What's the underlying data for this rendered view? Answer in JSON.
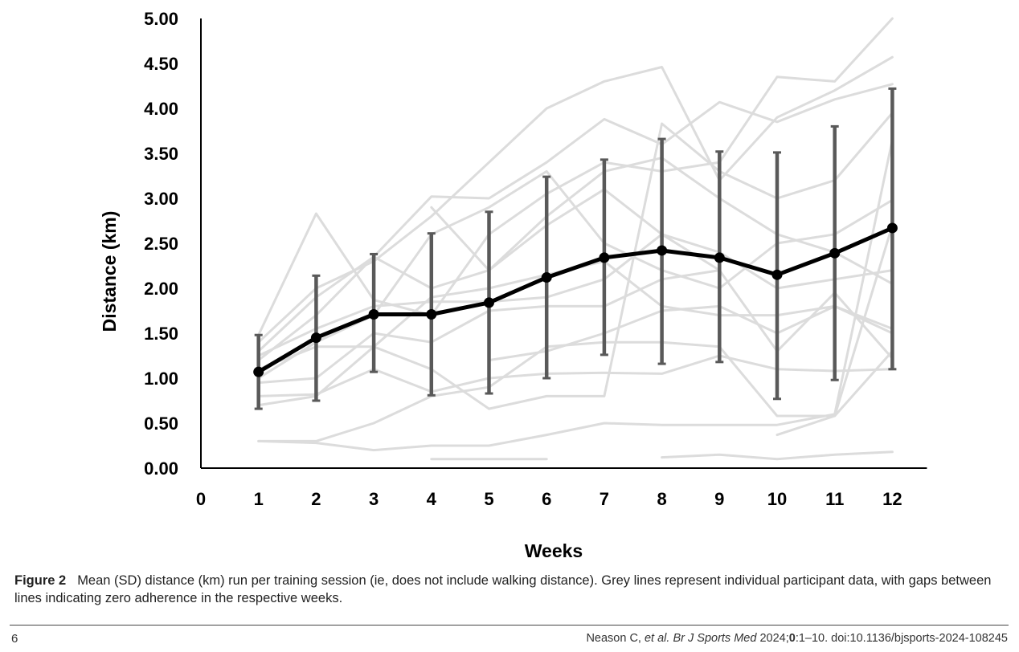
{
  "figure": {
    "label": "Figure 2",
    "caption": "Mean (SD) distance (km) run per training session (ie, does not include walking distance). Grey lines represent individual participant data, with gaps between lines indicating zero adherence in the respective weeks."
  },
  "footer": {
    "page_number": "6",
    "citation_authors": "Neason C, ",
    "citation_etal": "et al",
    "citation_journal": ". Br J Sports Med",
    "citation_year": " 2024;",
    "citation_vol": "0",
    "citation_rest": ":1–10. doi:10.1136/bjsports-2024-108245"
  },
  "chart_data": {
    "type": "line",
    "xlabel": "Weeks",
    "ylabel": "Distance (km)",
    "xlim": [
      0,
      12.5
    ],
    "ylim": [
      0,
      5
    ],
    "x_ticks": [
      "0",
      "1",
      "2",
      "3",
      "4",
      "5",
      "6",
      "7",
      "8",
      "9",
      "10",
      "11",
      "12"
    ],
    "y_ticks": [
      "0.00",
      "0.50",
      "1.00",
      "1.50",
      "2.00",
      "2.50",
      "3.00",
      "3.50",
      "4.00",
      "4.50",
      "5.00"
    ],
    "x": [
      1,
      2,
      3,
      4,
      5,
      6,
      7,
      8,
      9,
      10,
      11,
      12
    ],
    "mean": [
      1.07,
      1.45,
      1.71,
      1.71,
      1.84,
      2.12,
      2.34,
      2.42,
      2.34,
      2.15,
      2.39,
      2.67
    ],
    "sd_upper": [
      1.48,
      2.14,
      2.38,
      2.61,
      2.85,
      3.24,
      3.43,
      3.66,
      3.52,
      3.51,
      3.8,
      4.22
    ],
    "sd_lower": [
      0.66,
      0.75,
      1.07,
      0.81,
      0.83,
      1.0,
      1.26,
      1.16,
      1.18,
      0.77,
      0.98,
      1.1
    ],
    "colors": {
      "mean": "#000000",
      "error_bar": "#595959",
      "individual": "#dcdcdc"
    },
    "individual_series": [
      [
        1.48,
        2.83,
        1.87,
        1.7,
        2.6,
        3.05,
        3.4,
        3.3,
        3.4,
        4.35,
        4.3,
        5.0
      ],
      [
        1.4,
        2.0,
        2.3,
        2.8,
        3.4,
        4.0,
        4.3,
        4.46,
        3.2,
        3.9,
        4.2,
        4.57
      ],
      [
        1.2,
        1.7,
        2.35,
        3.02,
        3.0,
        3.4,
        3.88,
        3.6,
        4.07,
        3.85,
        4.1,
        4.27
      ],
      [
        0.7,
        0.8,
        1.35,
        1.1,
        0.66,
        0.8,
        0.8,
        3.83,
        3.3,
        3.0,
        3.2,
        3.95
      ],
      [
        1.0,
        1.4,
        1.7,
        2.6,
        2.9,
        3.3,
        2.5,
        2.2,
        2.0,
        2.5,
        2.6,
        2.98
      ],
      [
        1.3,
        1.9,
        2.35,
        2.0,
        2.2,
        2.8,
        3.3,
        3.45,
        3.0,
        2.6,
        2.4,
        2.05
      ],
      [
        1.1,
        1.35,
        1.35,
        1.9,
        2.0,
        2.15,
        2.3,
        1.8,
        1.7,
        1.7,
        1.8,
        1.55
      ],
      [
        0.95,
        1.0,
        1.5,
        1.4,
        1.75,
        1.8,
        1.8,
        2.1,
        2.2,
        1.3,
        1.95,
        1.22
      ],
      [
        0.8,
        0.82,
        1.1,
        0.85,
        1.0,
        1.05,
        1.06,
        1.05,
        1.25,
        1.1,
        1.08,
        1.1
      ],
      [
        0.3,
        0.3,
        0.5,
        0.8,
        0.9,
        1.35,
        1.4,
        1.4,
        1.35,
        0.58,
        0.58,
        2.7
      ],
      [
        0.3,
        0.28,
        0.2,
        0.25,
        0.25,
        0.37,
        0.5,
        0.48,
        0.48,
        0.48,
        0.6,
        3.65
      ],
      [
        1.25,
        1.55,
        1.8,
        1.85,
        1.85,
        1.9,
        2.1,
        2.6,
        2.4,
        2.0,
        2.1,
        2.2
      ],
      [
        null,
        null,
        null,
        0.1,
        0.1,
        0.1,
        null,
        0.12,
        0.15,
        0.1,
        0.15,
        0.18
      ],
      [
        null,
        null,
        null,
        null,
        null,
        null,
        null,
        null,
        null,
        0.37,
        0.58,
        1.3
      ],
      [
        null,
        null,
        null,
        null,
        1.2,
        1.3,
        1.5,
        1.75,
        1.8,
        1.5,
        1.8,
        1.5
      ],
      [
        null,
        null,
        null,
        2.9,
        2.2,
        2.7,
        3.1,
        2.6,
        2.2,
        null,
        null,
        null
      ]
    ]
  }
}
